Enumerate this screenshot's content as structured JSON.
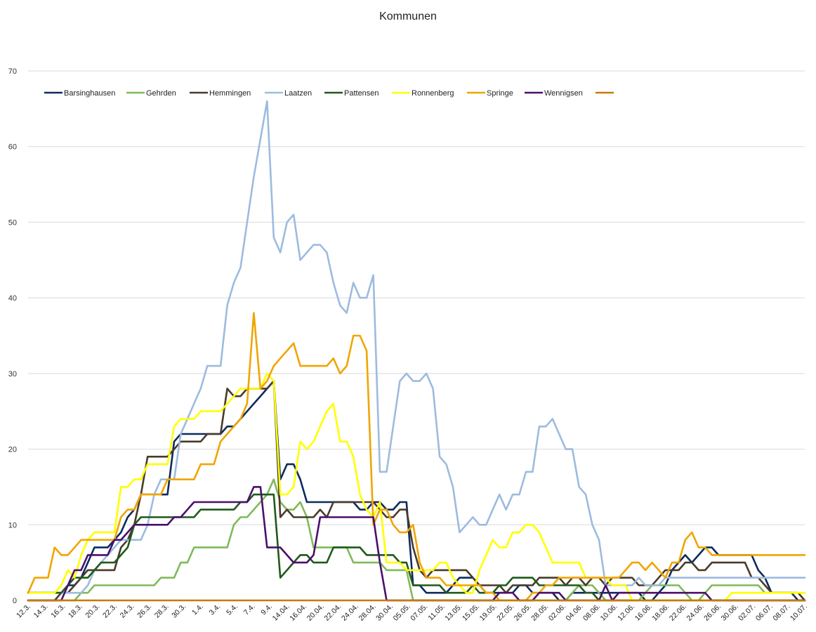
{
  "chart_data": {
    "type": "line",
    "title": "Kommunen",
    "xlabel": "",
    "ylabel": "",
    "ylim": [
      0,
      70
    ],
    "yticks": [
      0,
      10,
      20,
      30,
      40,
      50,
      60,
      70
    ],
    "grid": true,
    "legend_position": "top-left",
    "x_tick_labels": [
      "12.3.",
      "14.3.",
      "16.3.",
      "18.3.",
      "20.3.",
      "22.3.",
      "24.3.",
      "26.3.",
      "28.3.",
      "30.3.",
      "1.4.",
      "3.4.",
      "5.4.",
      "7.4.",
      "9.4.",
      "14.04.",
      "16.04.",
      "20.04.",
      "22.04.",
      "24.04.",
      "28.04.",
      "30.04.",
      "05.05.",
      "07.05.",
      "11.05.",
      "13.05.",
      "15.05.",
      "19.05.",
      "22.05.",
      "26.05.",
      "28.05.",
      "02.06.",
      "04.06.",
      "08.06.",
      "10.06.",
      "12.06.",
      "16.06.",
      "18.06.",
      "22.06.",
      "24.06.",
      "26.06.",
      "30.06.",
      "02.07.",
      "06.07.",
      "08.07.",
      "10.07."
    ],
    "series": [
      {
        "name": "Barsinghausen",
        "color": "#0d2b5e",
        "values": [
          1,
          1,
          1,
          1,
          1,
          1,
          2,
          2,
          3,
          5,
          7,
          7,
          7,
          8,
          9,
          11,
          12,
          14,
          14,
          14,
          14,
          14,
          21,
          22,
          22,
          22,
          22,
          22,
          22,
          22,
          23,
          23,
          24,
          25,
          26,
          27,
          28,
          29,
          16,
          18,
          18,
          16,
          13,
          13,
          13,
          13,
          13,
          13,
          13,
          13,
          12,
          12,
          13,
          13,
          12,
          12,
          13,
          13,
          2,
          2,
          1,
          1,
          1,
          1,
          2,
          3,
          3,
          3,
          2,
          1,
          1,
          1,
          1,
          1,
          2,
          2,
          1,
          1,
          1,
          1,
          0,
          0,
          1,
          1,
          1,
          1,
          1,
          1,
          1,
          1,
          1,
          1,
          1,
          0,
          0,
          1,
          2,
          4,
          5,
          6,
          5,
          6,
          7,
          7,
          6,
          6,
          6,
          6,
          6,
          6,
          4,
          3,
          1,
          1,
          1,
          1,
          0,
          0
        ]
      },
      {
        "name": "Gehrden",
        "color": "#7fba5a",
        "values": [
          0,
          0,
          0,
          0,
          0,
          0,
          0,
          0,
          1,
          1,
          2,
          2,
          2,
          2,
          2,
          2,
          2,
          2,
          2,
          2,
          3,
          3,
          3,
          5,
          5,
          7,
          7,
          7,
          7,
          7,
          7,
          10,
          11,
          11,
          12,
          13,
          14,
          16,
          13,
          12,
          12,
          13,
          11,
          7,
          7,
          7,
          7,
          7,
          7,
          5,
          5,
          5,
          5,
          5,
          4,
          4,
          4,
          4,
          0,
          0,
          0,
          0,
          0,
          0,
          0,
          0,
          0,
          0,
          0,
          0,
          0,
          0,
          0,
          0,
          0,
          0,
          0,
          0,
          0,
          0,
          0,
          0,
          1,
          2,
          2,
          2,
          1,
          0,
          0,
          0,
          0,
          0,
          0,
          1,
          2,
          2,
          2,
          2,
          2,
          1,
          0,
          0,
          1,
          2,
          2,
          2,
          2,
          2,
          2,
          2,
          2,
          1,
          1,
          1,
          1,
          1,
          1,
          0
        ]
      },
      {
        "name": "Hemmingen",
        "color": "#4a3a2a",
        "values": [
          0,
          0,
          0,
          0,
          0,
          1,
          1,
          2,
          3,
          4,
          4,
          4,
          4,
          4,
          7,
          8,
          10,
          14,
          19,
          19,
          19,
          19,
          20,
          21,
          21,
          21,
          21,
          22,
          22,
          22,
          28,
          27,
          27,
          28,
          28,
          28,
          28,
          29,
          11,
          12,
          11,
          11,
          11,
          11,
          12,
          11,
          13,
          13,
          13,
          13,
          13,
          13,
          13,
          12,
          11,
          11,
          12,
          12,
          7,
          4,
          3,
          4,
          4,
          4,
          4,
          4,
          4,
          3,
          2,
          2,
          2,
          2,
          1,
          2,
          2,
          2,
          2,
          3,
          3,
          3,
          3,
          2,
          3,
          3,
          2,
          3,
          3,
          2,
          3,
          3,
          3,
          3,
          2,
          2,
          2,
          3,
          4,
          4,
          4,
          5,
          5,
          4,
          4,
          5,
          5,
          5,
          5,
          5,
          5,
          3,
          3,
          2,
          1,
          1,
          1,
          1,
          1,
          0
        ]
      },
      {
        "name": "Laatzen",
        "color": "#9dbbdf",
        "values": [
          1,
          1,
          1,
          1,
          1,
          1,
          1,
          1,
          1,
          2,
          4,
          5,
          6,
          7,
          8,
          8,
          8,
          8,
          10,
          14,
          16,
          16,
          16,
          22,
          24,
          26,
          28,
          31,
          31,
          31,
          39,
          42,
          44,
          50,
          56,
          61,
          66,
          48,
          46,
          50,
          51,
          45,
          46,
          47,
          47,
          46,
          42,
          39,
          38,
          42,
          40,
          40,
          43,
          17,
          17,
          23,
          29,
          30,
          29,
          29,
          30,
          28,
          19,
          18,
          15,
          9,
          10,
          11,
          10,
          10,
          12,
          14,
          12,
          14,
          14,
          17,
          17,
          23,
          23,
          24,
          22,
          20,
          20,
          15,
          14,
          10,
          8,
          2,
          2,
          2,
          2,
          2,
          3,
          2,
          2,
          2,
          3,
          3,
          3,
          3,
          3,
          3,
          3,
          3,
          3,
          3,
          3,
          3,
          3,
          3,
          3,
          3,
          3,
          3,
          3,
          3,
          3,
          3
        ]
      },
      {
        "name": "Pattensen",
        "color": "#1f5a1a",
        "values": [
          1,
          1,
          1,
          1,
          1,
          1,
          2,
          3,
          3,
          3,
          4,
          5,
          5,
          5,
          6,
          7,
          10,
          11,
          11,
          11,
          11,
          11,
          11,
          11,
          11,
          11,
          12,
          12,
          12,
          12,
          12,
          12,
          13,
          13,
          14,
          14,
          14,
          14,
          3,
          4,
          5,
          6,
          6,
          5,
          5,
          5,
          7,
          7,
          7,
          7,
          7,
          6,
          6,
          6,
          6,
          6,
          5,
          5,
          2,
          2,
          2,
          2,
          2,
          1,
          1,
          1,
          1,
          2,
          1,
          1,
          1,
          2,
          2,
          3,
          3,
          3,
          3,
          2,
          2,
          2,
          2,
          2,
          2,
          2,
          1,
          1,
          0,
          0,
          0,
          0,
          0,
          0,
          0,
          0,
          0,
          0,
          0,
          0,
          0,
          0,
          0,
          0,
          0,
          0,
          0,
          0,
          0,
          0,
          0,
          0,
          0,
          0,
          0,
          0,
          0,
          0,
          0,
          0
        ]
      },
      {
        "name": "Ronnenberg",
        "color": "#ffff00",
        "values": [
          1,
          1,
          1,
          1,
          1,
          2,
          4,
          3,
          6,
          8,
          9,
          9,
          9,
          9,
          15,
          15,
          16,
          16,
          18,
          18,
          18,
          18,
          23,
          24,
          24,
          24,
          25,
          25,
          25,
          25,
          26,
          27,
          28,
          28,
          28,
          28,
          30,
          29,
          14,
          14,
          15,
          21,
          20,
          21,
          23,
          25,
          26,
          21,
          21,
          19,
          14,
          12,
          11,
          13,
          5,
          5,
          5,
          4,
          4,
          4,
          4,
          4,
          5,
          5,
          3,
          2,
          1,
          1,
          4,
          6,
          8,
          7,
          7,
          9,
          9,
          10,
          10,
          9,
          7,
          5,
          5,
          5,
          5,
          5,
          3,
          3,
          3,
          3,
          2,
          2,
          2,
          0,
          0,
          0,
          0,
          0,
          0,
          0,
          0,
          0,
          0,
          0,
          0,
          0,
          0,
          0,
          1,
          1,
          1,
          1,
          1,
          1,
          1,
          1,
          1,
          1,
          1,
          1
        ]
      },
      {
        "name": "Springe",
        "color": "#f0a500",
        "values": [
          1,
          3,
          3,
          3,
          7,
          6,
          6,
          7,
          8,
          8,
          8,
          8,
          8,
          8,
          11,
          12,
          12,
          14,
          14,
          14,
          14,
          16,
          16,
          16,
          16,
          16,
          18,
          18,
          18,
          21,
          22,
          23,
          24,
          26,
          38,
          28,
          29,
          31,
          32,
          33,
          34,
          31,
          31,
          31,
          31,
          31,
          32,
          30,
          31,
          35,
          35,
          33,
          10,
          12,
          12,
          10,
          9,
          9,
          10,
          5,
          3,
          3,
          3,
          2,
          2,
          2,
          2,
          2,
          2,
          1,
          1,
          0,
          0,
          0,
          0,
          0,
          1,
          1,
          2,
          2,
          3,
          3,
          3,
          3,
          3,
          3,
          3,
          3,
          3,
          3,
          4,
          5,
          5,
          4,
          5,
          4,
          3,
          5,
          5,
          8,
          9,
          7,
          7,
          6,
          6,
          6,
          6,
          6,
          6,
          6,
          6,
          6,
          6,
          6,
          6,
          6,
          6,
          6
        ]
      },
      {
        "name": "Wennigsen",
        "color": "#4b0f6b",
        "values": [
          0,
          0,
          0,
          0,
          0,
          0,
          2,
          4,
          4,
          6,
          6,
          6,
          6,
          8,
          8,
          9,
          10,
          10,
          10,
          10,
          10,
          10,
          11,
          11,
          12,
          13,
          13,
          13,
          13,
          13,
          13,
          13,
          13,
          13,
          15,
          15,
          7,
          7,
          7,
          6,
          5,
          5,
          5,
          6,
          11,
          11,
          11,
          11,
          11,
          11,
          11,
          11,
          11,
          5,
          0,
          0,
          0,
          0,
          0,
          0,
          0,
          0,
          0,
          0,
          0,
          0,
          0,
          0,
          0,
          0,
          0,
          1,
          1,
          1,
          0,
          0,
          0,
          1,
          1,
          1,
          1,
          0,
          0,
          0,
          0,
          0,
          0,
          2,
          0,
          1,
          1,
          1,
          1,
          1,
          1,
          1,
          1,
          1,
          1,
          1,
          1,
          1,
          1,
          0,
          0,
          0,
          0,
          0,
          0,
          0,
          0,
          0,
          0,
          0,
          0,
          0,
          0,
          0
        ]
      },
      {
        "name": "",
        "color": "#c77a00",
        "values": [
          0,
          0,
          0,
          0,
          0,
          0,
          0,
          0,
          0,
          0,
          0,
          0,
          0,
          0,
          0,
          0,
          0,
          0,
          0,
          0,
          0,
          0,
          0,
          0,
          0,
          0,
          0,
          0,
          0,
          0,
          0,
          0,
          0,
          0,
          0,
          0,
          0,
          0,
          0,
          0,
          0,
          0,
          0,
          0,
          0,
          0,
          0,
          0,
          0,
          0,
          0,
          0,
          0,
          0,
          0,
          0,
          0,
          0,
          0,
          0,
          0,
          0,
          0,
          0,
          0,
          0,
          0,
          0,
          0,
          0,
          0,
          0,
          0,
          0,
          0,
          0,
          0,
          0,
          0,
          0,
          0,
          0,
          0,
          0,
          0,
          0,
          0,
          0,
          0,
          0,
          0,
          0,
          0,
          0,
          0,
          0,
          0,
          0,
          0,
          0,
          0,
          0,
          0,
          0,
          0,
          0,
          0,
          0,
          0,
          0,
          0,
          0,
          0,
          0,
          0,
          0,
          0,
          0
        ]
      }
    ]
  }
}
